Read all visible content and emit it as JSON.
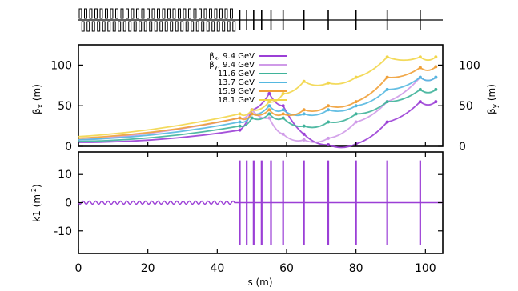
{
  "chart_data": [
    {
      "panel": "top-beta",
      "type": "line",
      "ylabel_left": "β",
      "ylabel_left_sub": "x",
      "ylabel_left_unit": " (m)",
      "ylabel_right": "β",
      "ylabel_right_sub": "y",
      "ylabel_right_unit": " (m)",
      "ylim": [
        0,
        125
      ],
      "yticks": [
        0,
        50,
        100
      ],
      "ytick_labels": [
        "0",
        "50",
        "100"
      ],
      "legend_position": "top-center",
      "x_cells": [
        0,
        46.5,
        50,
        55,
        59,
        65,
        72,
        80,
        89,
        98.5,
        103
      ],
      "series": [
        {
          "name": "βx, 9.4 GeV",
          "legend_prefix": "β",
          "legend_sub": "x",
          "legend_text": ", 9.4 GeV",
          "color": "#9b3fd6",
          "values": [
            5,
            20,
            45,
            65,
            50,
            15,
            2,
            3,
            30,
            55,
            55
          ]
        },
        {
          "name": "βy, 9.4 GeV",
          "legend_prefix": "β",
          "legend_sub": "y",
          "legend_text": ", 9.4 GeV",
          "color": "#cf9ae8",
          "values": [
            8,
            35,
            45,
            35,
            15,
            8,
            10,
            30,
            55,
            85,
            85
          ]
        },
        {
          "name": "11.6 GeV",
          "legend_prefix": "",
          "legend_sub": "",
          "legend_text": "11.6 GeV",
          "color": "#3fb39a",
          "values": [
            6,
            25,
            35,
            40,
            35,
            25,
            30,
            40,
            55,
            70,
            70
          ]
        },
        {
          "name": "13.7 GeV",
          "legend_prefix": "",
          "legend_sub": "",
          "legend_text": "13.7 GeV",
          "color": "#55b8e0",
          "values": [
            8,
            30,
            40,
            50,
            45,
            40,
            45,
            50,
            70,
            85,
            85
          ]
        },
        {
          "name": "15.9 GeV",
          "legend_prefix": "",
          "legend_sub": "",
          "legend_text": "15.9 GeV",
          "color": "#f0a038",
          "values": [
            10,
            35,
            40,
            45,
            40,
            45,
            50,
            55,
            85,
            97,
            98
          ]
        },
        {
          "name": "18.1 GeV",
          "legend_prefix": "",
          "legend_sub": "",
          "legend_text": "18.1 GeV",
          "color": "#f2d64a",
          "values": [
            12,
            40,
            45,
            55,
            65,
            80,
            78,
            85,
            110,
            110,
            110
          ]
        }
      ]
    },
    {
      "panel": "bottom-k1",
      "type": "bar",
      "ylabel": "k1 (m",
      "ylabel_sup": "-2",
      "ylabel_end": ")",
      "xlabel": "s (m)",
      "xlim": [
        0,
        105
      ],
      "xticks": [
        0,
        20,
        40,
        60,
        80,
        100
      ],
      "xtick_labels": [
        "0",
        "20",
        "40",
        "60",
        "80",
        "100"
      ],
      "ylim": [
        -18,
        18
      ],
      "yticks": [
        -10,
        0,
        10
      ],
      "ytick_labels": [
        "-10",
        "0",
        "10"
      ],
      "baseline": 0,
      "ripple_range": [
        0,
        45
      ],
      "magnet_s": [
        46.5,
        48.5,
        50.5,
        52.8,
        55.5,
        59,
        65,
        72,
        80,
        89,
        98.5
      ],
      "magnet_k1_max": 15,
      "magnet_k1_min": -15,
      "color": "#9b3fd6"
    }
  ],
  "lattice_strip": {
    "undulator_cells": 30,
    "undulator_range": [
      0,
      45
    ],
    "magnet_s": [
      46.5,
      48.5,
      50.5,
      52.8,
      55.5,
      59,
      65,
      72,
      80,
      89,
      98.5
    ]
  }
}
